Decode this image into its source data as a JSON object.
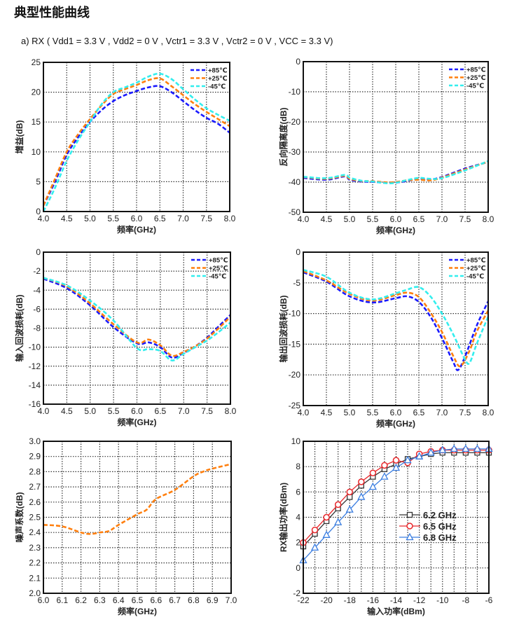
{
  "header": {
    "title": "典型性能曲线",
    "subtitle": "a) RX ( Vdd1 = 3.3 V , Vdd2 = 0 V , Vctr1 = 3.3 V , Vctr2 = 0 V , VCC = 3.3 V)"
  },
  "chart_data": [
    {
      "type": "line",
      "xlabel": "频率(GHz)",
      "ylabel": "增益(dB)",
      "xlim": [
        4,
        8
      ],
      "ylim": [
        0,
        25
      ],
      "grid": true,
      "legend": "top-right",
      "xticks": [
        "4.0",
        "4.5",
        "5.0",
        "5.5",
        "6.0",
        "6.5",
        "7.0",
        "7.5",
        "8.0"
      ],
      "yticks": [
        "0",
        "5",
        "10",
        "15",
        "20",
        "25"
      ],
      "series": [
        {
          "name": "+85℃",
          "color": "#1a1aff",
          "x": [
            4.0,
            4.25,
            4.5,
            4.75,
            5.0,
            5.25,
            5.5,
            5.75,
            6.0,
            6.25,
            6.5,
            6.75,
            7.0,
            7.25,
            7.5,
            7.75,
            8.0
          ],
          "y": [
            1,
            5,
            9.5,
            12.5,
            15,
            17,
            18.5,
            19.5,
            20.2,
            20.8,
            21,
            20,
            18.5,
            17,
            15.7,
            14.7,
            13.2
          ]
        },
        {
          "name": "+25℃",
          "color": "#ff7f0e",
          "x": [
            4.0,
            4.25,
            4.5,
            4.75,
            5.0,
            5.25,
            5.5,
            5.75,
            6.0,
            6.25,
            6.5,
            6.75,
            7.0,
            7.25,
            7.5,
            7.75,
            8.0
          ],
          "y": [
            1,
            5.5,
            10,
            13,
            15.5,
            17.8,
            19.7,
            20.5,
            21.2,
            22,
            22.3,
            21,
            19.5,
            18,
            16.7,
            15.5,
            14.3
          ]
        },
        {
          "name": "-45℃",
          "color": "#33eeee",
          "x": [
            4.0,
            4.25,
            4.5,
            4.75,
            5.0,
            5.25,
            5.5,
            5.75,
            6.0,
            6.25,
            6.5,
            6.75,
            7.0,
            7.25,
            7.5,
            7.75,
            8.0
          ],
          "y": [
            0,
            4,
            8.5,
            12,
            15,
            18,
            20,
            20.8,
            21.6,
            22.6,
            23.1,
            22.2,
            20.5,
            18.8,
            17.3,
            16.2,
            15.2
          ]
        }
      ]
    },
    {
      "type": "line",
      "xlabel": "频率(GHz)",
      "ylabel": "反向隔离度(dB)",
      "xlim": [
        4,
        8
      ],
      "ylim": [
        -50,
        0
      ],
      "grid": true,
      "legend": "top-right",
      "xticks": [
        "4.0",
        "4.5",
        "5.0",
        "5.5",
        "6.0",
        "6.5",
        "7.0",
        "7.5",
        "8.0"
      ],
      "yticks": [
        "-50",
        "-40",
        "-30",
        "-20",
        "-10",
        "0"
      ],
      "series": [
        {
          "name": "+85℃",
          "color": "#1a1aff",
          "x": [
            4.0,
            4.5,
            4.9,
            5.0,
            5.25,
            5.5,
            5.9,
            6.25,
            6.5,
            6.75,
            7.0,
            7.5,
            8.0
          ],
          "y": [
            -38.6,
            -39.2,
            -38.1,
            -39.2,
            -39.8,
            -39.9,
            -40.3,
            -39.6,
            -38.9,
            -39.1,
            -38.3,
            -35.5,
            -33.3
          ]
        },
        {
          "name": "+25℃",
          "color": "#ff7f0e",
          "x": [
            4.0,
            4.5,
            4.9,
            5.0,
            5.25,
            5.5,
            5.9,
            6.25,
            6.5,
            6.75,
            7.0,
            7.5,
            8.0
          ],
          "y": [
            -38.3,
            -38.9,
            -37.9,
            -38.9,
            -39.6,
            -39.7,
            -40.1,
            -39.4,
            -39.2,
            -39.4,
            -38.5,
            -35.8,
            -33.2
          ]
        },
        {
          "name": "-45℃",
          "color": "#33eeee",
          "x": [
            4.0,
            4.5,
            4.9,
            5.0,
            5.25,
            5.5,
            5.9,
            6.25,
            6.5,
            6.75,
            7.0,
            7.5,
            8.0
          ],
          "y": [
            -38.2,
            -38.7,
            -37.6,
            -38.5,
            -39.5,
            -39.8,
            -40.4,
            -39.3,
            -38.6,
            -38.9,
            -38.7,
            -36.1,
            -33.0
          ]
        }
      ]
    },
    {
      "type": "line",
      "xlabel": "频率(GHz)",
      "ylabel": "输入回波损耗(dB)",
      "xlim": [
        4,
        8
      ],
      "ylim": [
        -16,
        0
      ],
      "grid": true,
      "legend": "top-right",
      "xticks": [
        "4.0",
        "4.5",
        "5.0",
        "5.5",
        "6.0",
        "6.5",
        "7.0",
        "7.5",
        "8.0"
      ],
      "yticks": [
        "-16",
        "-14",
        "-12",
        "-10",
        "-8",
        "-6",
        "-4",
        "-2",
        "0"
      ],
      "series": [
        {
          "name": "+85℃",
          "color": "#1a1aff",
          "x": [
            4.0,
            4.5,
            5.0,
            5.5,
            6.0,
            6.25,
            6.5,
            6.75,
            7.0,
            7.25,
            7.5,
            7.75,
            8.0
          ],
          "y": [
            -2.8,
            -3.8,
            -5.6,
            -7.9,
            -9.6,
            -9.5,
            -10,
            -11.1,
            -10.6,
            -9.9,
            -9,
            -7.8,
            -6.6
          ]
        },
        {
          "name": "+25℃",
          "color": "#ff7f0e",
          "x": [
            4.0,
            4.5,
            5.0,
            5.5,
            6.0,
            6.25,
            6.5,
            6.75,
            7.0,
            7.25,
            7.5,
            7.75,
            8.0
          ],
          "y": [
            -2.7,
            -3.6,
            -5.4,
            -7.6,
            -9.5,
            -9.2,
            -9.8,
            -10.9,
            -10.5,
            -9.9,
            -9.1,
            -8,
            -6.8
          ]
        },
        {
          "name": "-45℃",
          "color": "#33eeee",
          "x": [
            4.0,
            4.5,
            5.0,
            5.5,
            6.0,
            6.25,
            6.5,
            6.75,
            7.0,
            7.25,
            7.5,
            7.75,
            8.0
          ],
          "y": [
            -2.7,
            -3.5,
            -5.1,
            -7.2,
            -10.1,
            -10.2,
            -10.4,
            -11.4,
            -10.7,
            -10,
            -9.3,
            -8.4,
            -7.4
          ]
        }
      ]
    },
    {
      "type": "line",
      "xlabel": "频率(GHz)",
      "ylabel": "输出回波损耗(dB)",
      "xlim": [
        4,
        8
      ],
      "ylim": [
        -25,
        0
      ],
      "grid": true,
      "legend": "top-right",
      "xticks": [
        "4.0",
        "4.5",
        "5.0",
        "5.5",
        "6.0",
        "6.5",
        "7.0",
        "7.5",
        "8.0"
      ],
      "yticks": [
        "-25",
        "-20",
        "-15",
        "-10",
        "-5",
        "0"
      ],
      "series": [
        {
          "name": "+85℃",
          "color": "#1a1aff",
          "x": [
            4.0,
            4.5,
            5.0,
            5.5,
            6.0,
            6.25,
            6.5,
            6.75,
            7.0,
            7.25,
            7.35,
            7.5,
            7.75,
            8.0
          ],
          "y": [
            -3.3,
            -4.8,
            -7.2,
            -8.2,
            -7.5,
            -7.2,
            -8.1,
            -10.5,
            -14,
            -18,
            -19.2,
            -17,
            -12,
            -8
          ]
        },
        {
          "name": "+25℃",
          "color": "#ff7f0e",
          "x": [
            4.0,
            4.5,
            5.0,
            5.5,
            6.0,
            6.25,
            6.5,
            6.75,
            7.0,
            7.25,
            7.4,
            7.6,
            7.75,
            8.0
          ],
          "y": [
            -3.1,
            -4.6,
            -6.8,
            -7.9,
            -7,
            -6.6,
            -7.3,
            -9.8,
            -13,
            -17,
            -18.6,
            -16,
            -13,
            -9.5
          ]
        },
        {
          "name": "-45℃",
          "color": "#33eeee",
          "x": [
            4.0,
            4.5,
            5.0,
            5.5,
            6.0,
            6.25,
            6.5,
            6.75,
            7.0,
            7.25,
            7.5,
            7.6,
            7.75,
            8.0
          ],
          "y": [
            -2.9,
            -4,
            -6.6,
            -7.7,
            -6.7,
            -6.1,
            -5.7,
            -7.2,
            -10,
            -13.5,
            -17.5,
            -18,
            -15,
            -10.5
          ]
        }
      ]
    },
    {
      "type": "line",
      "xlabel": "频率(GHz)",
      "ylabel": "噪声系数(dB)",
      "xlim": [
        6,
        7
      ],
      "ylim": [
        2,
        3
      ],
      "grid": true,
      "xticks": [
        "6.0",
        "6.1",
        "6.2",
        "6.3",
        "6.4",
        "6.5",
        "6.6",
        "6.7",
        "6.8",
        "6.9",
        "7.0"
      ],
      "yticks": [
        "2.0",
        "2.1",
        "2.2",
        "2.3",
        "2.4",
        "2.5",
        "2.6",
        "2.7",
        "2.8",
        "2.9",
        "3.0"
      ],
      "series": [
        {
          "color": "#ff7f0e",
          "x": [
            6.0,
            6.1,
            6.2,
            6.25,
            6.3,
            6.35,
            6.4,
            6.5,
            6.55,
            6.6,
            6.7,
            6.8,
            6.85,
            6.9,
            7.0
          ],
          "y": [
            2.45,
            2.44,
            2.4,
            2.39,
            2.4,
            2.41,
            2.45,
            2.52,
            2.55,
            2.62,
            2.68,
            2.77,
            2.8,
            2.82,
            2.85
          ]
        }
      ]
    },
    {
      "type": "line",
      "xlabel": "输入功率(dBm)",
      "ylabel": "RX输出功率(dBm)",
      "xlim": [
        -22,
        -6
      ],
      "ylim": [
        -2,
        10
      ],
      "grid": true,
      "legend": "center-right",
      "xticks": [
        "-22",
        "-20",
        "-18",
        "-16",
        "-14",
        "-12",
        "-10",
        "-8",
        "-6"
      ],
      "yticks": [
        "-2",
        "0",
        "2",
        "4",
        "6",
        "8",
        "10"
      ],
      "series": [
        {
          "name": "6.2 GHz",
          "color": "#333333",
          "marker": "square",
          "x": [
            -22,
            -21,
            -20,
            -19,
            -18,
            -17,
            -16,
            -15,
            -14,
            -13,
            -12,
            -11,
            -10,
            -9,
            -8,
            -7,
            -6
          ],
          "y": [
            1.7,
            2.7,
            3.7,
            4.7,
            5.6,
            6.5,
            7.2,
            7.8,
            8.2,
            8.6,
            8.8,
            9.0,
            9.1,
            9.1,
            9.1,
            9.1,
            9.1
          ]
        },
        {
          "name": "6.5 GHz",
          "color": "#e8262a",
          "marker": "circle",
          "x": [
            -22,
            -21,
            -20,
            -19,
            -18,
            -17,
            -16,
            -15,
            -14,
            -13,
            -12,
            -11,
            -10,
            -9,
            -8,
            -7,
            -6
          ],
          "y": [
            2.0,
            3.0,
            4.0,
            5.0,
            6.0,
            6.8,
            7.5,
            8.1,
            8.5,
            8.3,
            9.0,
            9.2,
            9.3,
            9.3,
            9.3,
            9.3,
            9.3
          ]
        },
        {
          "name": "6.8 GHz",
          "color": "#3a7de0",
          "marker": "triangle",
          "x": [
            -22,
            -21,
            -20,
            -19,
            -18,
            -17,
            -16,
            -15,
            -14,
            -13,
            -12,
            -11,
            -10,
            -9,
            -8,
            -7,
            -6
          ],
          "y": [
            0.6,
            1.6,
            2.6,
            3.6,
            4.6,
            5.6,
            6.4,
            7.2,
            7.9,
            8.5,
            8.8,
            9.1,
            9.3,
            9.4,
            9.4,
            9.4,
            9.4
          ]
        }
      ]
    }
  ]
}
